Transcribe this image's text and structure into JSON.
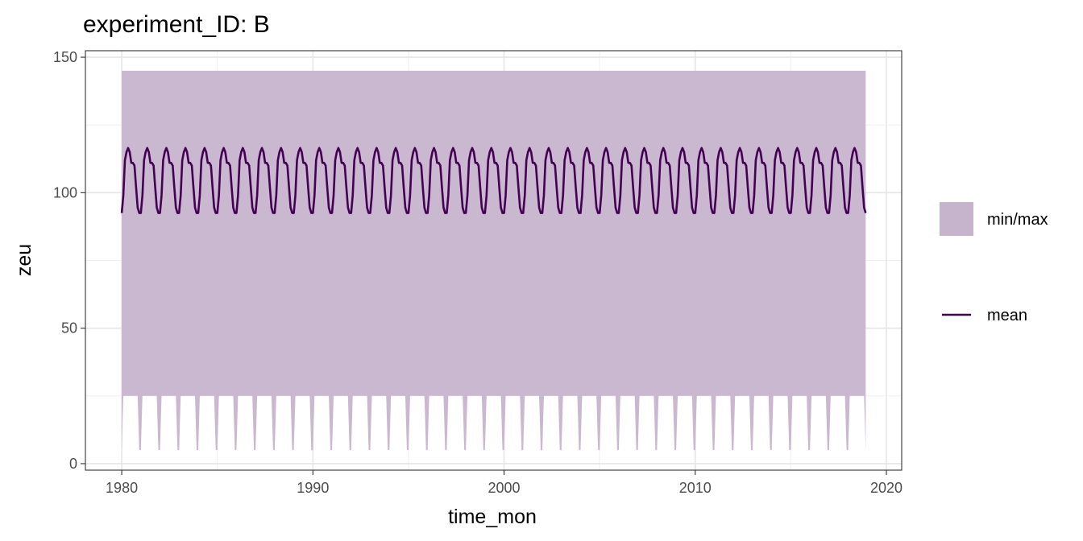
{
  "chart_data": {
    "type": "area",
    "title": "experiment_ID: B",
    "xlabel": "time_mon",
    "ylabel": "zeu",
    "xlim": [
      1978.1,
      2020.8
    ],
    "ylim": [
      -2.4,
      152.4
    ],
    "x_ticks": [
      1980,
      1990,
      2000,
      2010,
      2020
    ],
    "x_tick_labels": [
      "1980",
      "1990",
      "2000",
      "2010",
      "2020"
    ],
    "y_ticks": [
      0,
      50,
      100,
      150
    ],
    "y_tick_labels": [
      "0",
      "50",
      "100",
      "150"
    ],
    "grid": true,
    "legend_position": "right",
    "x_range": [
      1980.0,
      2018.9167
    ],
    "series": [
      {
        "name": "min/max",
        "kind": "ribbon",
        "color": "#c6b3cc",
        "max": 145,
        "min_pattern_months": [
          5,
          25,
          25,
          25,
          25,
          25,
          25,
          25,
          25,
          25,
          25,
          5
        ]
      },
      {
        "name": "mean",
        "kind": "line",
        "color": "#440154",
        "seasonal_pattern_months": [
          92.5,
          99,
          112,
          115,
          116.5,
          115,
          111,
          111,
          110,
          102,
          94.5,
          92.5
        ]
      }
    ]
  }
}
